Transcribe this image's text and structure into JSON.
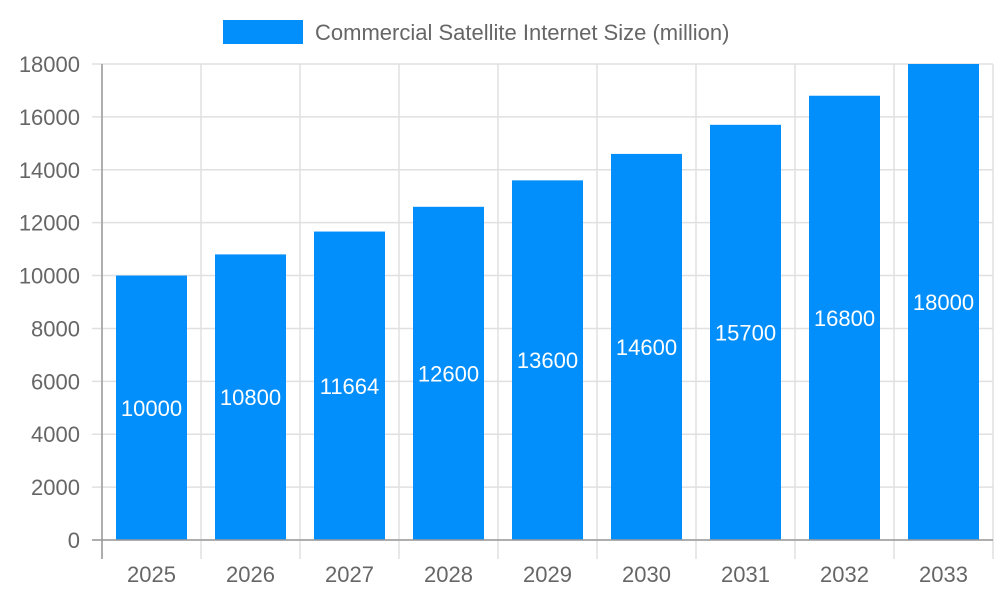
{
  "chart_data": {
    "type": "bar",
    "categories": [
      "2025",
      "2026",
      "2027",
      "2028",
      "2029",
      "2030",
      "2031",
      "2032",
      "2033"
    ],
    "series": [
      {
        "name": "Commercial Satellite Internet Size (million)",
        "values": [
          10000,
          10800,
          11664,
          12600,
          13600,
          14600,
          15700,
          16800,
          18000
        ],
        "color": "#038ffb"
      }
    ],
    "ylim": [
      0,
      18000
    ],
    "yticks": [
      0,
      2000,
      4000,
      6000,
      8000,
      10000,
      12000,
      14000,
      16000,
      18000
    ],
    "grid": true,
    "legend_position": "top",
    "data_labels": true,
    "title": "",
    "xlabel": "",
    "ylabel": ""
  }
}
